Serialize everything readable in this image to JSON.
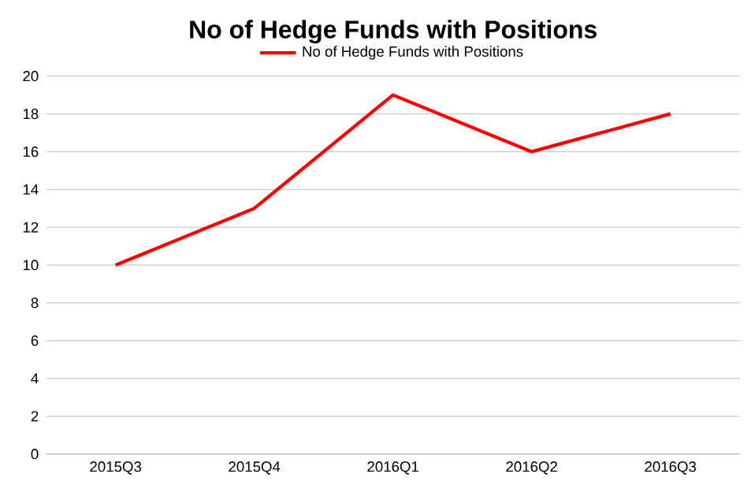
{
  "chart_data": {
    "type": "line",
    "title": "No of Hedge Funds with Positions",
    "categories": [
      "2015Q3",
      "2015Q4",
      "2016Q1",
      "2016Q2",
      "2016Q3"
    ],
    "series": [
      {
        "name": "No of Hedge Funds with Positions",
        "color": "#ff0000",
        "values": [
          10,
          13,
          19,
          16,
          18
        ]
      }
    ],
    "ylim": [
      0,
      20
    ],
    "yticks": [
      0,
      2,
      4,
      6,
      8,
      10,
      12,
      14,
      16,
      18,
      20
    ],
    "grid": "y",
    "legend": "top",
    "marker": "none",
    "line_style": "solid"
  }
}
